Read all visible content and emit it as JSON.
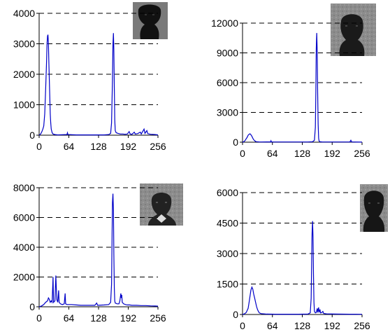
{
  "chart_data": [
    {
      "type": "line",
      "xlim": [
        0,
        256
      ],
      "ylim": [
        0,
        4000
      ],
      "xticks": [
        0,
        64,
        128,
        192,
        256
      ],
      "yticks": [
        0,
        1000,
        2000,
        3000,
        4000
      ],
      "xtick_labels": [
        "0",
        "64",
        "128",
        "192",
        "256"
      ],
      "ytick_labels": [
        "0",
        "1000",
        "2000",
        "3000",
        "4000"
      ],
      "grid": "dashed horizontal",
      "color": "#0000c8",
      "inset": "face thumbnail, top-right",
      "series": [
        {
          "points": [
            [
              0,
              0
            ],
            [
              2,
              20
            ],
            [
              4,
              60
            ],
            [
              6,
              120
            ],
            [
              8,
              200
            ],
            [
              10,
              300
            ],
            [
              12,
              700
            ],
            [
              14,
              1500
            ],
            [
              16,
              2400
            ],
            [
              17,
              3000
            ],
            [
              18,
              3250
            ],
            [
              19,
              3300
            ],
            [
              20,
              3000
            ],
            [
              21,
              2400
            ],
            [
              22,
              1800
            ],
            [
              23,
              1200
            ],
            [
              24,
              700
            ],
            [
              25,
              400
            ],
            [
              26,
              200
            ],
            [
              28,
              80
            ],
            [
              30,
              40
            ],
            [
              34,
              20
            ],
            [
              40,
              10
            ],
            [
              60,
              20
            ],
            [
              61,
              80
            ],
            [
              62,
              20
            ],
            [
              80,
              10
            ],
            [
              100,
              10
            ],
            [
              120,
              10
            ],
            [
              140,
              10
            ],
            [
              150,
              20
            ],
            [
              154,
              60
            ],
            [
              156,
              400
            ],
            [
              158,
              1800
            ],
            [
              159,
              3000
            ],
            [
              160,
              3350
            ],
            [
              161,
              2800
            ],
            [
              162,
              1500
            ],
            [
              163,
              500
            ],
            [
              164,
              150
            ],
            [
              166,
              80
            ],
            [
              170,
              60
            ],
            [
              175,
              40
            ],
            [
              180,
              40
            ],
            [
              185,
              30
            ],
            [
              190,
              40
            ],
            [
              194,
              120
            ],
            [
              196,
              40
            ],
            [
              200,
              30
            ],
            [
              205,
              100
            ],
            [
              207,
              40
            ],
            [
              212,
              50
            ],
            [
              218,
              100
            ],
            [
              220,
              40
            ],
            [
              226,
              200
            ],
            [
              228,
              60
            ],
            [
              232,
              150
            ],
            [
              234,
              50
            ],
            [
              240,
              30
            ],
            [
              250,
              20
            ],
            [
              256,
              10
            ]
          ]
        }
      ]
    },
    {
      "type": "line",
      "xlim": [
        0,
        256
      ],
      "ylim": [
        0,
        12000
      ],
      "xticks": [
        0,
        64,
        128,
        192,
        256
      ],
      "yticks": [
        0,
        3000,
        6000,
        9000,
        12000
      ],
      "xtick_labels": [
        "0",
        "64",
        "128",
        "192",
        "256"
      ],
      "ytick_labels": [
        "0",
        "3000",
        "6000",
        "9000",
        "12000"
      ],
      "grid": "dashed horizontal",
      "color": "#0000c8",
      "inset": "face thumbnail, top-right",
      "series": [
        {
          "points": [
            [
              0,
              0
            ],
            [
              2,
              30
            ],
            [
              4,
              100
            ],
            [
              6,
              200
            ],
            [
              8,
              350
            ],
            [
              10,
              500
            ],
            [
              12,
              700
            ],
            [
              14,
              800
            ],
            [
              16,
              850
            ],
            [
              18,
              750
            ],
            [
              20,
              600
            ],
            [
              22,
              400
            ],
            [
              24,
              250
            ],
            [
              26,
              150
            ],
            [
              28,
              80
            ],
            [
              30,
              50
            ],
            [
              35,
              30
            ],
            [
              40,
              20
            ],
            [
              60,
              30
            ],
            [
              61,
              150
            ],
            [
              62,
              30
            ],
            [
              80,
              20
            ],
            [
              100,
              20
            ],
            [
              120,
              20
            ],
            [
              140,
              20
            ],
            [
              150,
              40
            ],
            [
              154,
              200
            ],
            [
              156,
              1500
            ],
            [
              157,
              5000
            ],
            [
              158,
              9500
            ],
            [
              159,
              11000
            ],
            [
              160,
              9000
            ],
            [
              161,
              5000
            ],
            [
              162,
              1800
            ],
            [
              163,
              400
            ],
            [
              164,
              120
            ],
            [
              166,
              40
            ],
            [
              170,
              30
            ],
            [
              180,
              20
            ],
            [
              200,
              20
            ],
            [
              230,
              20
            ],
            [
              232,
              200
            ],
            [
              234,
              30
            ],
            [
              240,
              20
            ],
            [
              256,
              10
            ]
          ]
        }
      ]
    },
    {
      "type": "line",
      "xlim": [
        0,
        256
      ],
      "ylim": [
        0,
        8000
      ],
      "xticks": [
        0,
        64,
        128,
        192,
        256
      ],
      "yticks": [
        0,
        2000,
        4000,
        6000,
        8000
      ],
      "xtick_labels": [
        "0",
        "64",
        "128",
        "192",
        "256"
      ],
      "ytick_labels": [
        "0",
        "2000",
        "4000",
        "6000",
        "8000"
      ],
      "grid": "dashed horizontal",
      "color": "#0000c8",
      "inset": "face thumbnail, top-right",
      "series": [
        {
          "points": [
            [
              0,
              0
            ],
            [
              5,
              50
            ],
            [
              10,
              150
            ],
            [
              14,
              300
            ],
            [
              18,
              400
            ],
            [
              20,
              600
            ],
            [
              22,
              500
            ],
            [
              24,
              300
            ],
            [
              26,
              400
            ],
            [
              28,
              300
            ],
            [
              30,
              2000
            ],
            [
              31,
              300
            ],
            [
              34,
              400
            ],
            [
              36,
              2100
            ],
            [
              38,
              500
            ],
            [
              40,
              300
            ],
            [
              42,
              1100
            ],
            [
              43,
              300
            ],
            [
              46,
              200
            ],
            [
              50,
              150
            ],
            [
              54,
              200
            ],
            [
              56,
              900
            ],
            [
              57,
              200
            ],
            [
              60,
              150
            ],
            [
              70,
              150
            ],
            [
              80,
              120
            ],
            [
              90,
              100
            ],
            [
              100,
              100
            ],
            [
              110,
              100
            ],
            [
              120,
              100
            ],
            [
              124,
              250
            ],
            [
              126,
              100
            ],
            [
              140,
              120
            ],
            [
              150,
              150
            ],
            [
              154,
              300
            ],
            [
              156,
              1500
            ],
            [
              157,
              4500
            ],
            [
              158,
              7000
            ],
            [
              159,
              7600
            ],
            [
              160,
              6500
            ],
            [
              161,
              3500
            ],
            [
              162,
              1200
            ],
            [
              163,
              400
            ],
            [
              164,
              250
            ],
            [
              168,
              200
            ],
            [
              172,
              200
            ],
            [
              174,
              400
            ],
            [
              176,
              900
            ],
            [
              177,
              600
            ],
            [
              178,
              800
            ],
            [
              179,
              300
            ],
            [
              182,
              200
            ],
            [
              186,
              150
            ],
            [
              190,
              120
            ],
            [
              195,
              120
            ],
            [
              200,
              100
            ],
            [
              210,
              100
            ],
            [
              220,
              80
            ],
            [
              230,
              80
            ],
            [
              240,
              60
            ],
            [
              250,
              50
            ],
            [
              256,
              40
            ]
          ]
        }
      ]
    },
    {
      "type": "line",
      "xlim": [
        0,
        256
      ],
      "ylim": [
        0,
        6000
      ],
      "xticks": [
        0,
        64,
        128,
        192,
        256
      ],
      "yticks": [
        0,
        1500,
        3000,
        4500,
        6000
      ],
      "xtick_labels": [
        "0",
        "64",
        "128",
        "192",
        "256"
      ],
      "ytick_labels": [
        "0",
        "1500",
        "3000",
        "4500",
        "6000"
      ],
      "grid": "dashed horizontal",
      "color": "#0000c8",
      "inset": "face thumbnail, top-right",
      "series": [
        {
          "points": [
            [
              0,
              0
            ],
            [
              4,
              30
            ],
            [
              8,
              100
            ],
            [
              12,
              300
            ],
            [
              14,
              600
            ],
            [
              16,
              900
            ],
            [
              18,
              1200
            ],
            [
              20,
              1350
            ],
            [
              22,
              1250
            ],
            [
              24,
              1000
            ],
            [
              26,
              800
            ],
            [
              28,
              600
            ],
            [
              30,
              400
            ],
            [
              32,
              250
            ],
            [
              34,
              150
            ],
            [
              36,
              80
            ],
            [
              40,
              40
            ],
            [
              50,
              20
            ],
            [
              70,
              15
            ],
            [
              100,
              15
            ],
            [
              120,
              15
            ],
            [
              140,
              20
            ],
            [
              145,
              80
            ],
            [
              147,
              800
            ],
            [
              148,
              2500
            ],
            [
              149,
              4000
            ],
            [
              150,
              4600
            ],
            [
              151,
              3800
            ],
            [
              152,
              2000
            ],
            [
              153,
              600
            ],
            [
              154,
              150
            ],
            [
              156,
              80
            ],
            [
              158,
              100
            ],
            [
              160,
              300
            ],
            [
              161,
              100
            ],
            [
              163,
              350
            ],
            [
              164,
              100
            ],
            [
              166,
              250
            ],
            [
              167,
              80
            ],
            [
              170,
              100
            ],
            [
              172,
              150
            ],
            [
              174,
              50
            ],
            [
              180,
              30
            ],
            [
              200,
              20
            ],
            [
              230,
              15
            ],
            [
              256,
              10
            ]
          ]
        }
      ]
    }
  ]
}
